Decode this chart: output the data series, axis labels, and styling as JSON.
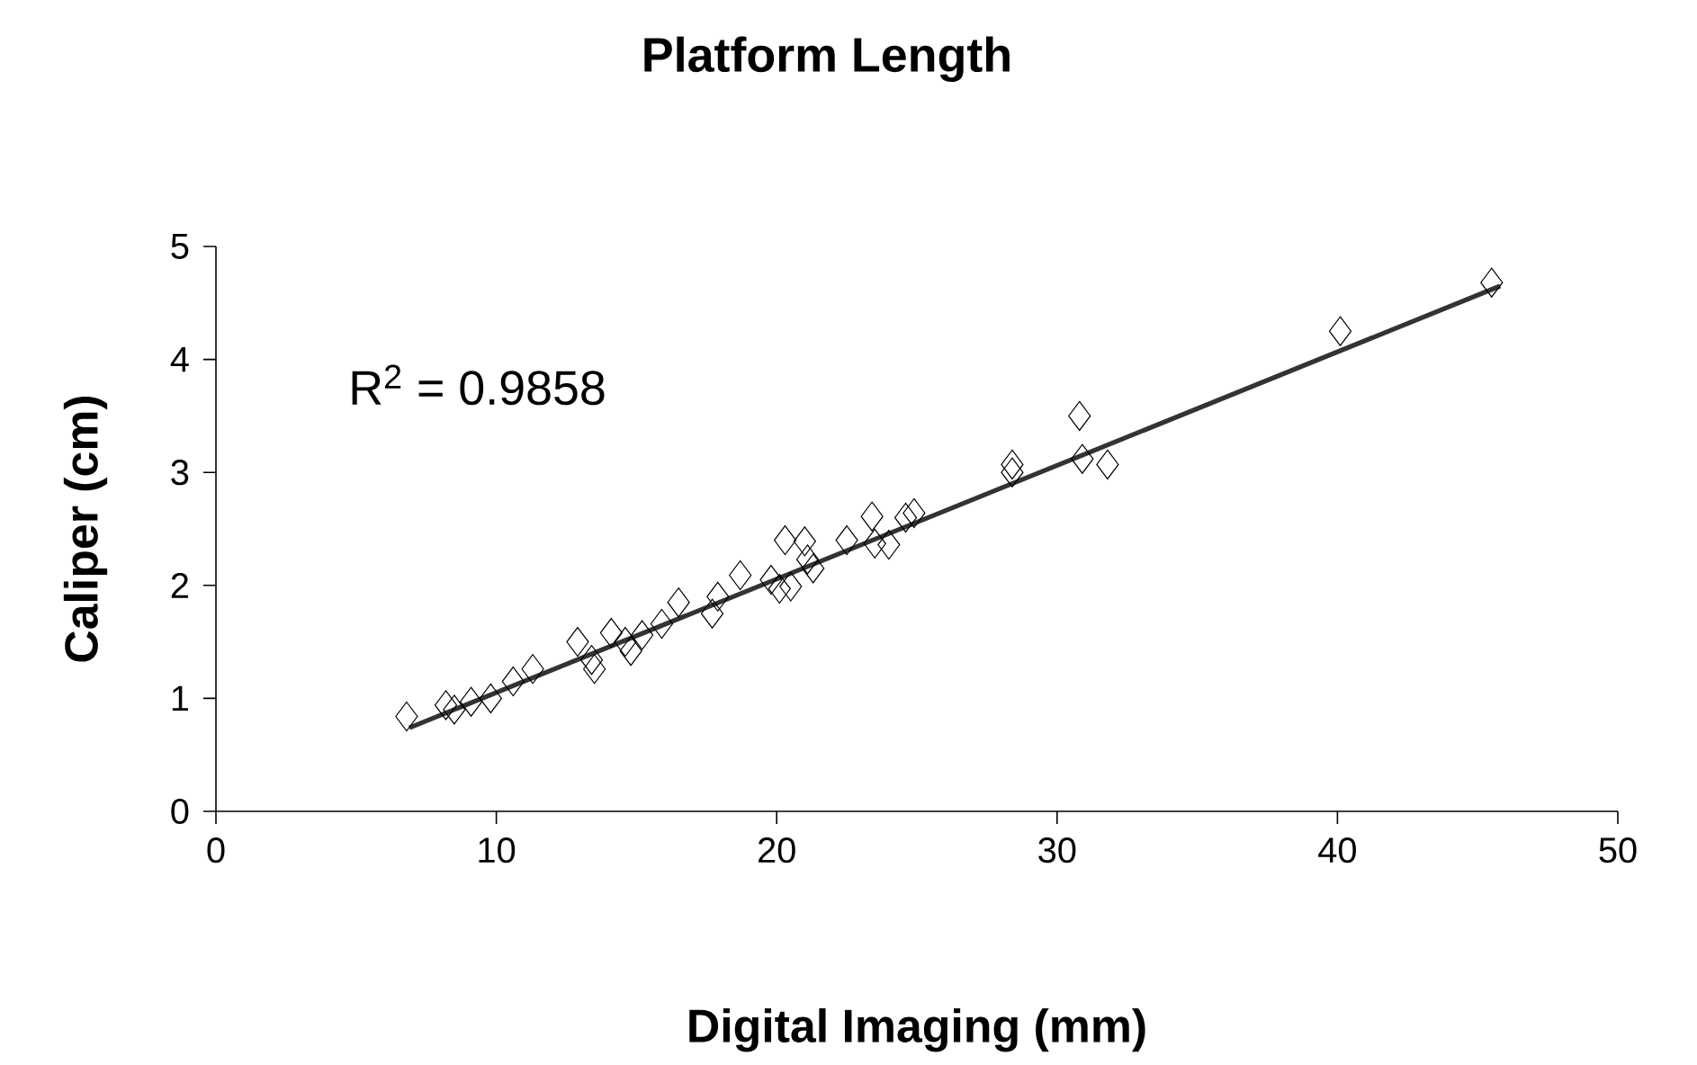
{
  "chart_data": {
    "type": "scatter",
    "title": "Platform Length",
    "xlabel": "Digital Imaging (mm)",
    "ylabel": "Caliper (cm)",
    "annotations": [
      "R$^{2}$ = 0.9858"
    ],
    "xlim": [
      0,
      50
    ],
    "xticks": [
      0,
      10,
      20,
      30,
      40,
      50
    ],
    "ylim": [
      0,
      5
    ],
    "yticks": [
      0,
      1,
      2,
      3,
      4,
      5
    ],
    "marker": "diamond",
    "series": [
      {
        "color": "#000000",
        "x": [
          6.8,
          8.2,
          8.5,
          9.1,
          9.8,
          10.6,
          11.3,
          12.9,
          13.4,
          13.5,
          14.1,
          14.6,
          14.8,
          15.2,
          15.9,
          16.5,
          17.7,
          17.9,
          18.7,
          19.8,
          20.1,
          20.3,
          20.5,
          21.0,
          21.1,
          21.3,
          22.5,
          23.4,
          23.5,
          24.0,
          24.6,
          24.9,
          28.4,
          28.4,
          30.8,
          30.9,
          31.8,
          40.1,
          45.5
        ],
        "values": [
          0.84,
          0.94,
          0.9,
          0.97,
          1.0,
          1.15,
          1.26,
          1.5,
          1.34,
          1.26,
          1.58,
          1.5,
          1.42,
          1.56,
          1.66,
          1.85,
          1.75,
          1.9,
          2.09,
          2.05,
          1.97,
          2.4,
          1.99,
          2.39,
          2.23,
          2.15,
          2.4,
          2.61,
          2.37,
          2.36,
          2.6,
          2.64,
          3.07,
          3.0,
          3.5,
          3.12,
          3.07,
          4.25,
          4.68
        ]
      },
      {
        "type": "line",
        "color": "#333333",
        "marker": "none",
        "line_style": "solid",
        "x": [
          6.9,
          45.8
        ],
        "values": [
          0.74,
          4.65
        ]
      }
    ]
  }
}
